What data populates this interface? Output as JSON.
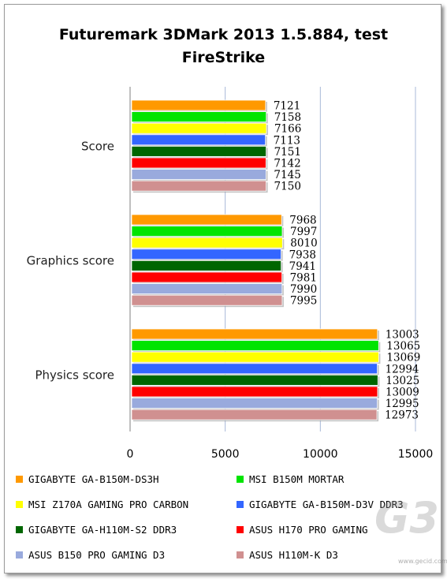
{
  "chart_data": {
    "type": "bar",
    "orientation": "horizontal",
    "title_lines": [
      "Futuremark 3DMark 2013 1.5.884, test",
      "FireStrike"
    ],
    "categories": [
      "Score",
      "Graphics score",
      "Physics score"
    ],
    "xlim": [
      0,
      15000
    ],
    "x_ticks": [
      "0",
      "5000",
      "10000",
      "15000"
    ],
    "grid": "vertical",
    "legend_position": "bottom",
    "series": [
      {
        "name": "GIGABYTE GA-B150M-DS3H",
        "color": "#FF9900",
        "values": [
          7121,
          7968,
          13003
        ]
      },
      {
        "name": "MSI B150M MORTAR",
        "color": "#00E400",
        "values": [
          7158,
          7997,
          13065
        ]
      },
      {
        "name": "MSI Z170A GAMING PRO CARBON",
        "color": "#FFFF00",
        "values": [
          7166,
          8010,
          13069
        ]
      },
      {
        "name": "GIGABYTE GA-B150M-D3V DDR3",
        "color": "#3366FF",
        "values": [
          7113,
          7938,
          12994
        ]
      },
      {
        "name": "GIGABYTE GA-H110M-S2 DDR3",
        "color": "#006600",
        "values": [
          7151,
          7941,
          13025
        ]
      },
      {
        "name": "ASUS H170 PRO GAMING",
        "color": "#FF0000",
        "values": [
          7142,
          7981,
          13009
        ]
      },
      {
        "name": "ASUS B150 PRO GAMING D3",
        "color": "#99AADD",
        "values": [
          7145,
          7990,
          12995
        ]
      },
      {
        "name": "ASUS H110M-K D3",
        "color": "#D09090",
        "values": [
          7150,
          7995,
          12973
        ]
      }
    ]
  },
  "watermark": {
    "logo": "G3",
    "sub": "www.gecid.com"
  }
}
